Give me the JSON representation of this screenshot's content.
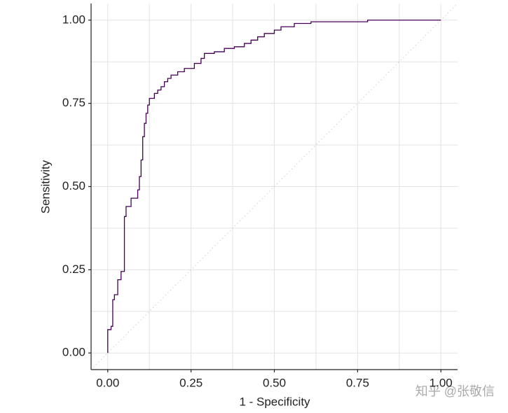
{
  "chart_data": {
    "type": "line",
    "step": true,
    "x_label": "1 - Specificity",
    "y_label": "Sensitivity",
    "watermark": "知乎 @张敬信",
    "color": "#440154",
    "grid": true,
    "reference_line": true,
    "xlim": [
      -0.05,
      1.05
    ],
    "ylim": [
      -0.05,
      1.05
    ],
    "xticks": [
      {
        "value": 0,
        "label": "0.00"
      },
      {
        "value": 0.25,
        "label": "0.25"
      },
      {
        "value": 0.5,
        "label": "0.50"
      },
      {
        "value": 0.75,
        "label": "0.75"
      },
      {
        "value": 1,
        "label": "1.00"
      }
    ],
    "yticks": [
      {
        "value": 0,
        "label": "0.00"
      },
      {
        "value": 0.25,
        "label": "0.25"
      },
      {
        "value": 0.5,
        "label": "0.50"
      },
      {
        "value": 0.75,
        "label": "0.75"
      },
      {
        "value": 1,
        "label": "1.00"
      }
    ],
    "x": [
      0,
      0,
      0.01,
      0.01,
      0.015,
      0.015,
      0.02,
      0.02,
      0.03,
      0.03,
      0.04,
      0.04,
      0.05,
      0.05,
      0.055,
      0.055,
      0.07,
      0.07,
      0.09,
      0.09,
      0.095,
      0.095,
      0.1,
      0.1,
      0.105,
      0.105,
      0.11,
      0.11,
      0.115,
      0.115,
      0.12,
      0.12,
      0.125,
      0.125,
      0.14,
      0.14,
      0.15,
      0.15,
      0.16,
      0.16,
      0.17,
      0.17,
      0.18,
      0.18,
      0.19,
      0.19,
      0.21,
      0.21,
      0.23,
      0.23,
      0.26,
      0.26,
      0.28,
      0.28,
      0.29,
      0.29,
      0.32,
      0.32,
      0.35,
      0.35,
      0.38,
      0.38,
      0.41,
      0.41,
      0.43,
      0.43,
      0.45,
      0.45,
      0.47,
      0.47,
      0.5,
      0.5,
      0.52,
      0.52,
      0.56,
      0.56,
      0.61,
      0.61,
      0.78,
      0.78,
      1
    ],
    "values": [
      0,
      0.07,
      0.07,
      0.08,
      0.08,
      0.16,
      0.16,
      0.175,
      0.175,
      0.22,
      0.22,
      0.245,
      0.245,
      0.41,
      0.41,
      0.44,
      0.44,
      0.465,
      0.465,
      0.49,
      0.49,
      0.53,
      0.53,
      0.58,
      0.58,
      0.65,
      0.65,
      0.69,
      0.69,
      0.72,
      0.72,
      0.745,
      0.745,
      0.765,
      0.765,
      0.78,
      0.78,
      0.79,
      0.79,
      0.8,
      0.8,
      0.815,
      0.815,
      0.825,
      0.825,
      0.835,
      0.835,
      0.845,
      0.845,
      0.855,
      0.855,
      0.87,
      0.87,
      0.885,
      0.885,
      0.9,
      0.9,
      0.905,
      0.905,
      0.915,
      0.915,
      0.92,
      0.92,
      0.93,
      0.93,
      0.94,
      0.94,
      0.95,
      0.95,
      0.96,
      0.96,
      0.97,
      0.97,
      0.98,
      0.98,
      0.99,
      0.99,
      0.995,
      0.995,
      1,
      1
    ]
  }
}
